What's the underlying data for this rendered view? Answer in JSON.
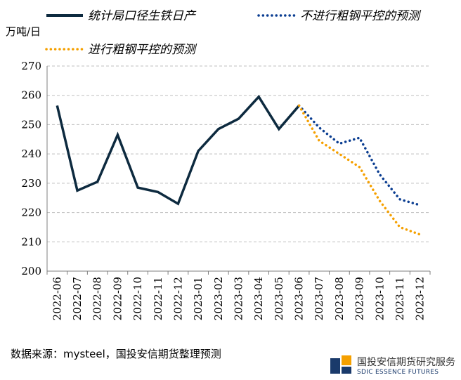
{
  "chart_data": {
    "type": "line",
    "ylabel": "万吨/日",
    "ylim": [
      200,
      270
    ],
    "yticks": [
      200,
      210,
      220,
      230,
      240,
      250,
      260,
      270
    ],
    "grid": "horizontal dashed",
    "legend_position": "top",
    "categories": [
      "2022-06",
      "2022-07",
      "2022-08",
      "2022-09",
      "2022-10",
      "2022-11",
      "2022-12",
      "2023-01",
      "2023-02",
      "2023-03",
      "2023-04",
      "2023-05",
      "2023-06",
      "2023-07",
      "2023-08",
      "2023-09",
      "2023-10",
      "2023-11",
      "2023-12"
    ],
    "series": [
      {
        "name": "统计局口径生铁日产",
        "style": "solid",
        "color": "#0d2a3f",
        "values": [
          256.5,
          227.5,
          230.5,
          246.5,
          228.5,
          227.0,
          223.0,
          241.0,
          248.5,
          252.0,
          259.5,
          248.5,
          256.5,
          null,
          null,
          null,
          null,
          null,
          null
        ]
      },
      {
        "name": "不进行粗钢平控的预测",
        "style": "dotted",
        "color": "#0a3d91",
        "values": [
          null,
          null,
          null,
          null,
          null,
          null,
          null,
          null,
          null,
          null,
          null,
          null,
          256.5,
          249.0,
          243.5,
          245.5,
          233.0,
          224.5,
          222.5
        ]
      },
      {
        "name": "进行粗钢平控的预测",
        "style": "dotted",
        "color": "#f5a000",
        "values": [
          null,
          null,
          null,
          null,
          null,
          null,
          null,
          null,
          null,
          null,
          null,
          null,
          256.5,
          244.5,
          240.0,
          235.5,
          224.0,
          215.0,
          212.5
        ]
      }
    ]
  },
  "source": "数据来源：mysteel，国投安信期货整理预测",
  "watermark": {
    "text": "国投安信期货研究服务",
    "sub": "SDIC ESSENCE FUTURES"
  }
}
